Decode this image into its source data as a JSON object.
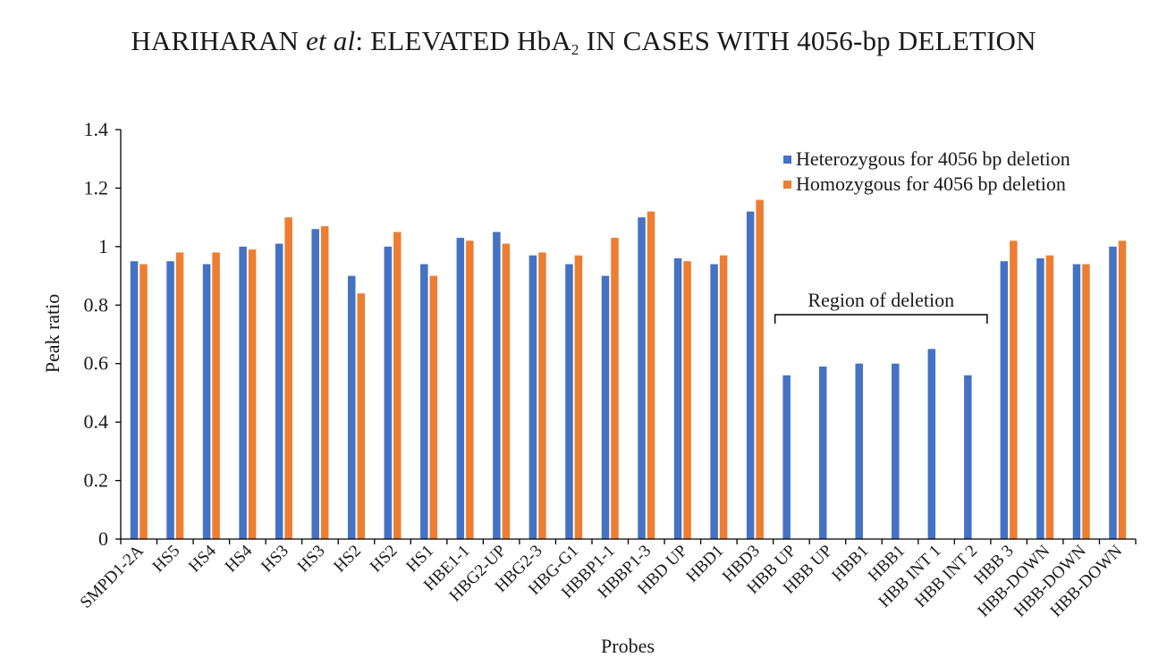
{
  "header": {
    "part1": "HARIHARAN ",
    "italic": "et al",
    "part2": ": ELEVATED HbA",
    "subscript": "2",
    "part3": " IN CASES WITH 4056-bp DELETION"
  },
  "colors": {
    "heterozygous": "#4472C4",
    "homozygous": "#ED7D31",
    "axis": "#000000"
  },
  "chart_data": {
    "type": "bar",
    "xlabel": "Probes",
    "ylabel": "Peak ratio",
    "ylim": [
      0,
      1.4
    ],
    "yticks": [
      0,
      0.2,
      0.4,
      0.6,
      0.8,
      1,
      1.2,
      1.4
    ],
    "ytick_labels": [
      "0",
      "0.2",
      "0.4",
      "0.6",
      "0.8",
      "1",
      "1.2",
      "1.4"
    ],
    "grid": false,
    "legend_position": "top-right",
    "categories": [
      "SMPD1-2A",
      "HS5",
      "HS4",
      "HS4",
      "HS3",
      "HS3",
      "HS2",
      "HS2",
      "HS1",
      "HBE1-1",
      "HBG2-UP",
      "HBG2-3",
      "HBG-G1",
      "HBBP1-1",
      "HBBP1-3",
      "HBD UP",
      "HBD1",
      "HBD3",
      "HBB UP",
      "HBB UP",
      "HBB1",
      "HBB1",
      "HBB INT 1",
      "HBB INT 2",
      "HBB 3",
      "HBB-DOWN",
      "HBB-DOWN",
      "HBB-DOWN"
    ],
    "series": [
      {
        "name": "Heterozygous for 4056 bp deletion",
        "values": [
          0.95,
          0.95,
          0.94,
          1.0,
          1.01,
          1.06,
          0.9,
          1.0,
          0.94,
          1.03,
          1.05,
          0.97,
          0.94,
          0.9,
          1.1,
          0.96,
          0.94,
          1.12,
          0.56,
          0.59,
          0.6,
          0.6,
          0.65,
          0.56,
          0.95,
          0.96,
          0.94,
          1.0
        ]
      },
      {
        "name": "Homozygous for 4056 bp deletion",
        "values": [
          0.94,
          0.98,
          0.98,
          0.99,
          1.1,
          1.07,
          0.84,
          1.05,
          0.9,
          1.02,
          1.01,
          0.98,
          0.97,
          1.03,
          1.12,
          0.95,
          0.97,
          1.16,
          null,
          null,
          null,
          null,
          null,
          null,
          1.02,
          0.97,
          0.94,
          1.02
        ]
      }
    ],
    "annotations": [
      {
        "text": "Region of deletion",
        "from_category_index": 18,
        "to_category_index": 23
      }
    ]
  }
}
